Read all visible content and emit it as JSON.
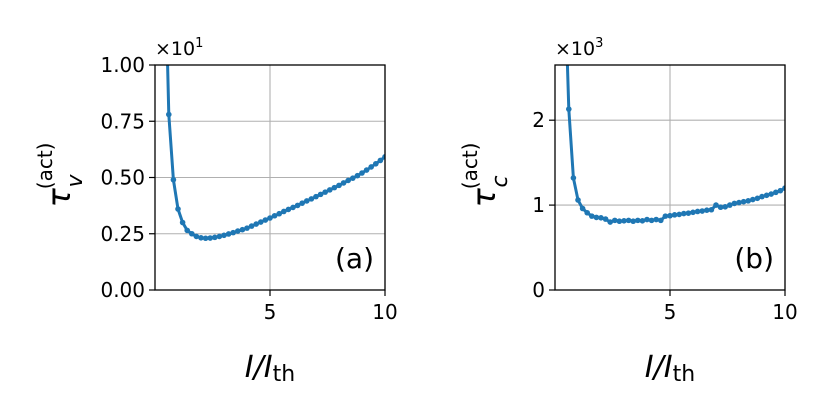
{
  "colors": {
    "line": "#1f77b4",
    "grid": "#b0b0b0",
    "axis": "#000000"
  },
  "chart_data": [
    {
      "id": "a",
      "type": "line",
      "panel_label": "(a)",
      "xlabel_main": "I/I",
      "xlabel_sub": "th",
      "ylabel_main": "τ",
      "ylabel_sub": "v",
      "ylabel_sup": "(act)",
      "multiplier_base": "×10",
      "multiplier_exp": "1",
      "xlim": [
        0,
        10
      ],
      "ylim": [
        0,
        1.0
      ],
      "xticks": [
        5,
        10
      ],
      "xtick_labels": [
        "5",
        "10"
      ],
      "yticks": [
        0,
        0.25,
        0.5,
        0.75,
        1.0
      ],
      "ytick_labels": [
        "0.00",
        "0.25",
        "0.50",
        "0.75",
        "1.00"
      ],
      "grid": true,
      "series": [
        {
          "x": [
            0.5,
            0.6,
            0.8,
            1.0,
            1.2,
            1.4,
            1.6,
            1.8,
            2.0,
            2.2,
            2.4,
            2.6,
            2.8,
            3.0,
            3.2,
            3.4,
            3.6,
            3.8,
            4.0,
            4.2,
            4.4,
            4.6,
            4.8,
            5.0,
            5.2,
            5.4,
            5.6,
            5.8,
            6.0,
            6.2,
            6.4,
            6.6,
            6.8,
            7.0,
            7.2,
            7.4,
            7.6,
            7.8,
            8.0,
            8.2,
            8.4,
            8.6,
            8.8,
            9.0,
            9.2,
            9.4,
            9.6,
            9.8,
            10.0
          ],
          "y": [
            1.2,
            0.78,
            0.49,
            0.36,
            0.3,
            0.265,
            0.25,
            0.238,
            0.232,
            0.23,
            0.231,
            0.234,
            0.238,
            0.243,
            0.249,
            0.255,
            0.262,
            0.268,
            0.275,
            0.284,
            0.293,
            0.302,
            0.311,
            0.32,
            0.33,
            0.339,
            0.349,
            0.358,
            0.367,
            0.376,
            0.386,
            0.396,
            0.405,
            0.415,
            0.425,
            0.435,
            0.445,
            0.455,
            0.465,
            0.476,
            0.487,
            0.497,
            0.508,
            0.52,
            0.533,
            0.547,
            0.561,
            0.576,
            0.592
          ]
        }
      ]
    },
    {
      "id": "b",
      "type": "line",
      "panel_label": "(b)",
      "xlabel_main": "I/I",
      "xlabel_sub": "th",
      "ylabel_main": "τ",
      "ylabel_sub": "c",
      "ylabel_sup": "(act)",
      "multiplier_base": "×10",
      "multiplier_exp": "3",
      "xlim": [
        0,
        10
      ],
      "ylim": [
        0,
        2.65
      ],
      "xticks": [
        5,
        10
      ],
      "xtick_labels": [
        "5",
        "10"
      ],
      "yticks": [
        0,
        1,
        2
      ],
      "ytick_labels": [
        "0",
        "1",
        "2"
      ],
      "grid": true,
      "series": [
        {
          "x": [
            0.5,
            0.6,
            0.8,
            1.0,
            1.2,
            1.4,
            1.6,
            1.8,
            2.0,
            2.2,
            2.4,
            2.6,
            2.8,
            3.0,
            3.2,
            3.4,
            3.6,
            3.8,
            4.0,
            4.2,
            4.4,
            4.6,
            4.8,
            5.0,
            5.2,
            5.4,
            5.6,
            5.8,
            6.0,
            6.2,
            6.4,
            6.6,
            6.8,
            7.0,
            7.2,
            7.4,
            7.6,
            7.8,
            8.0,
            8.2,
            8.4,
            8.6,
            8.8,
            9.0,
            9.2,
            9.4,
            9.6,
            9.8,
            10.0
          ],
          "y": [
            3.0,
            2.13,
            1.32,
            1.06,
            0.96,
            0.91,
            0.87,
            0.855,
            0.85,
            0.835,
            0.8,
            0.82,
            0.81,
            0.815,
            0.82,
            0.81,
            0.82,
            0.815,
            0.83,
            0.82,
            0.83,
            0.82,
            0.87,
            0.875,
            0.885,
            0.89,
            0.9,
            0.905,
            0.915,
            0.925,
            0.93,
            0.94,
            0.945,
            1.0,
            0.975,
            0.98,
            1.0,
            1.02,
            1.03,
            1.04,
            1.05,
            1.065,
            1.08,
            1.1,
            1.115,
            1.13,
            1.15,
            1.17,
            1.2
          ]
        }
      ]
    }
  ]
}
